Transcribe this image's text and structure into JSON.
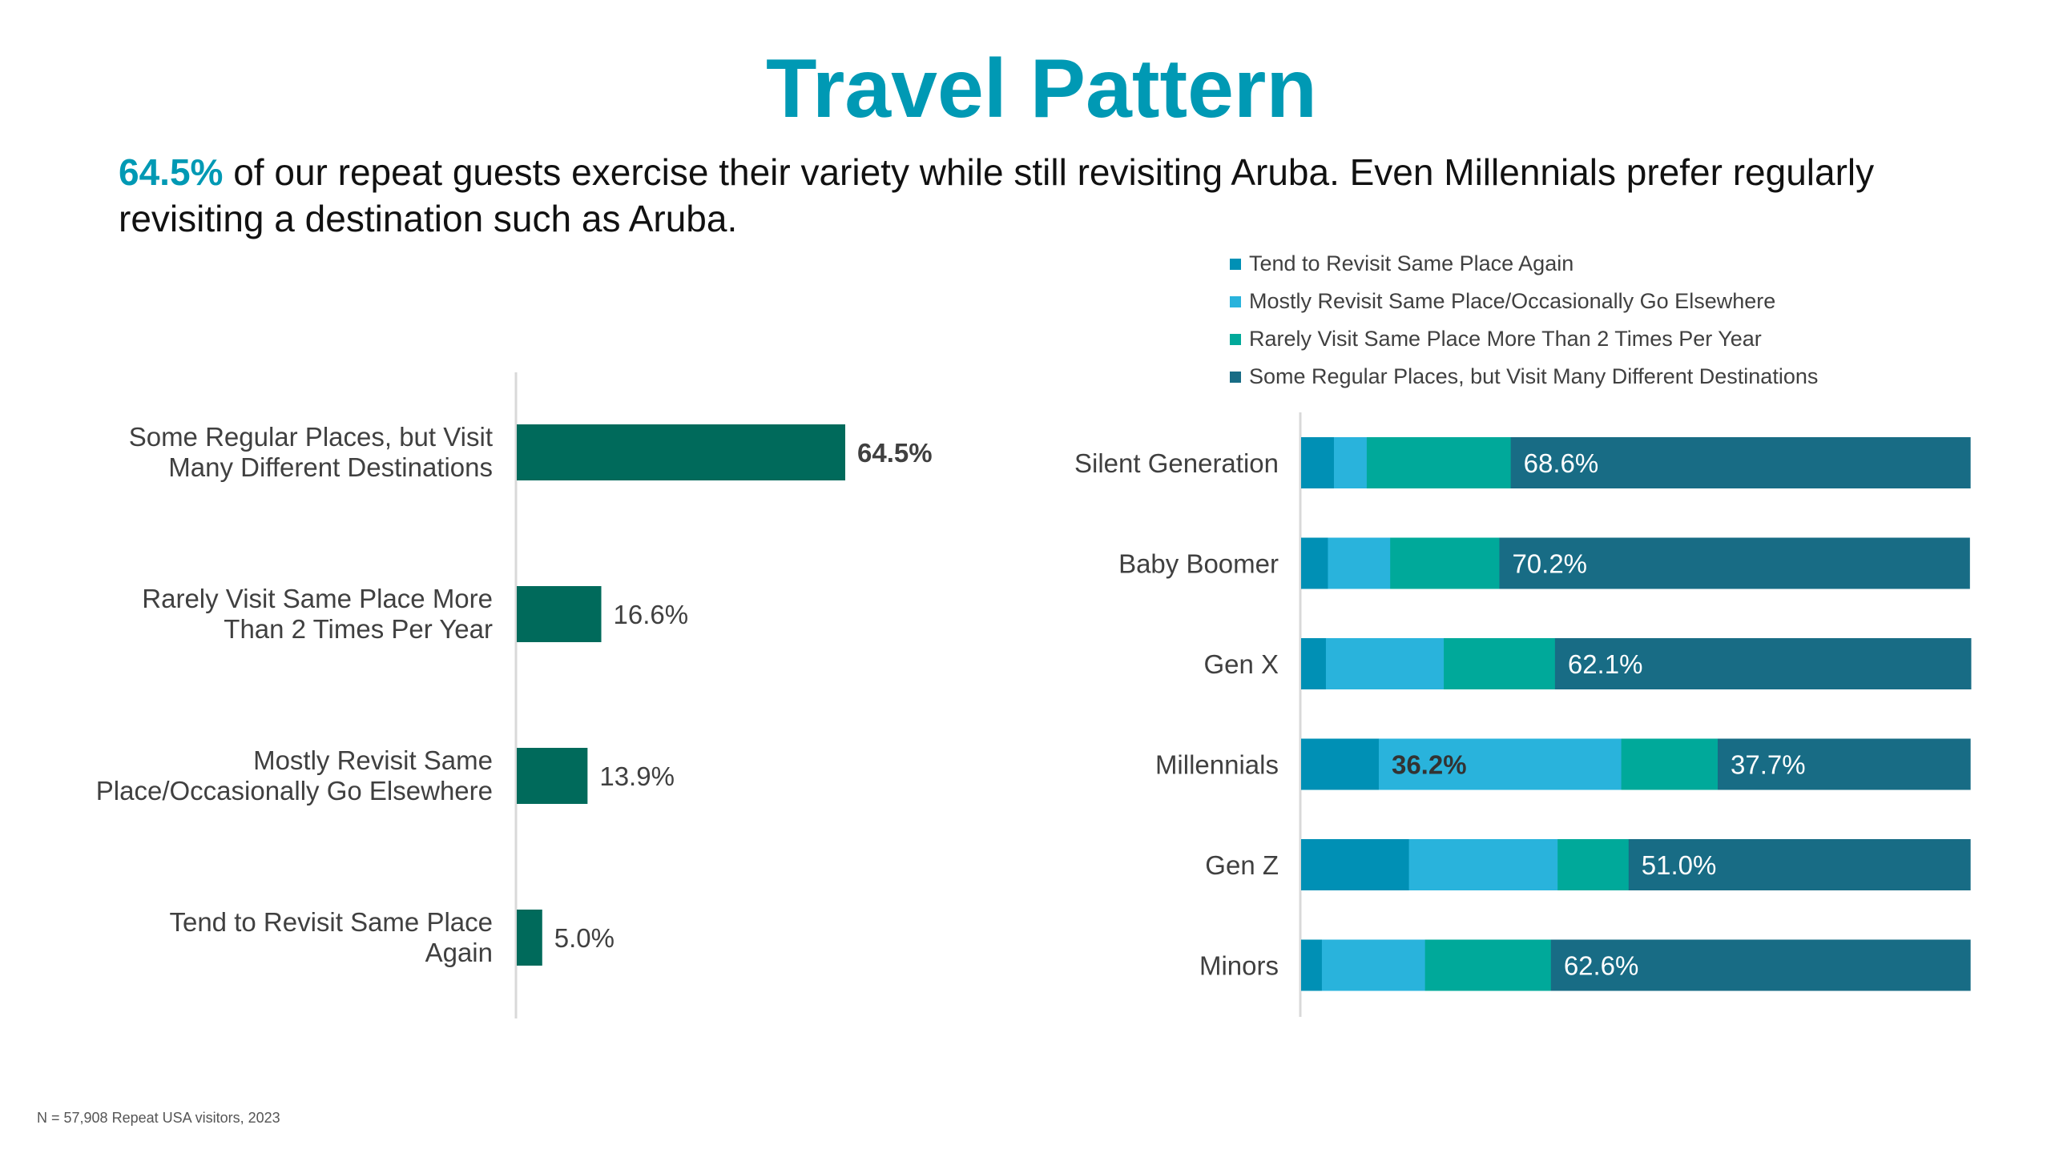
{
  "title": "Travel Pattern",
  "subtitle": {
    "highlight": "64.5%",
    "text": " of our repeat guests exercise their variety while still revisiting Aruba. Even Millennials prefer regularly revisiting a destination such as Aruba."
  },
  "footnote": "N = 57,908 Repeat USA visitors, 2023",
  "chart_data": [
    {
      "type": "bar",
      "orientation": "horizontal",
      "title": "",
      "categories": [
        [
          "Some Regular Places, but Visit",
          "Many Different Destinations"
        ],
        [
          "Rarely Visit Same Place More",
          "Than 2 Times Per Year"
        ],
        [
          "Mostly Revisit Same",
          "Place/Occasionally Go Elsewhere"
        ],
        [
          "Tend to Revisit Same Place",
          "Again"
        ]
      ],
      "values": [
        64.5,
        16.6,
        13.9,
        5.0
      ],
      "labels": [
        "64.5%",
        "16.6%",
        "13.9%",
        "5.0%"
      ],
      "bold_labels": [
        true,
        false,
        false,
        false
      ],
      "color": "#006A5B",
      "xlim": [
        0,
        100
      ],
      "grid": false
    },
    {
      "type": "bar",
      "orientation": "horizontal",
      "stacked": "percent",
      "categories": [
        "Silent Generation",
        "Baby Boomer",
        "Gen X",
        "Millennials",
        "Gen Z",
        "Minors"
      ],
      "series": [
        {
          "name": "Tend to Revisit Same Place Again",
          "color": "#0090B5",
          "values": [
            4.9,
            4.0,
            3.7,
            11.6,
            16.1,
            3.1
          ]
        },
        {
          "name": "Mostly Revisit Same Place/Occasionally Go Elsewhere",
          "color": "#29B3DC",
          "values": [
            4.9,
            9.3,
            17.6,
            36.2,
            22.2,
            15.4
          ]
        },
        {
          "name": "Rarely Visit Same Place More Than 2 Times Per Year",
          "color": "#00A99A",
          "values": [
            21.5,
            16.3,
            16.6,
            14.4,
            10.6,
            18.8
          ]
        },
        {
          "name": "Some Regular Places, but Visit Many Different Destinations",
          "color": "#186C85",
          "values": [
            68.6,
            70.2,
            62.1,
            37.7,
            51.0,
            62.6
          ]
        }
      ],
      "data_labels": [
        {
          "series": 3,
          "category": 0,
          "text": "68.6%"
        },
        {
          "series": 3,
          "category": 1,
          "text": "70.2%"
        },
        {
          "series": 3,
          "category": 2,
          "text": "62.1%"
        },
        {
          "series": 1,
          "category": 3,
          "text": "36.2%",
          "bold": true
        },
        {
          "series": 3,
          "category": 3,
          "text": "37.7%"
        },
        {
          "series": 3,
          "category": 4,
          "text": "51.0%"
        },
        {
          "series": 3,
          "category": 5,
          "text": "62.6%"
        }
      ],
      "legend": "top",
      "xlim": [
        0,
        100
      ],
      "grid": false
    }
  ]
}
